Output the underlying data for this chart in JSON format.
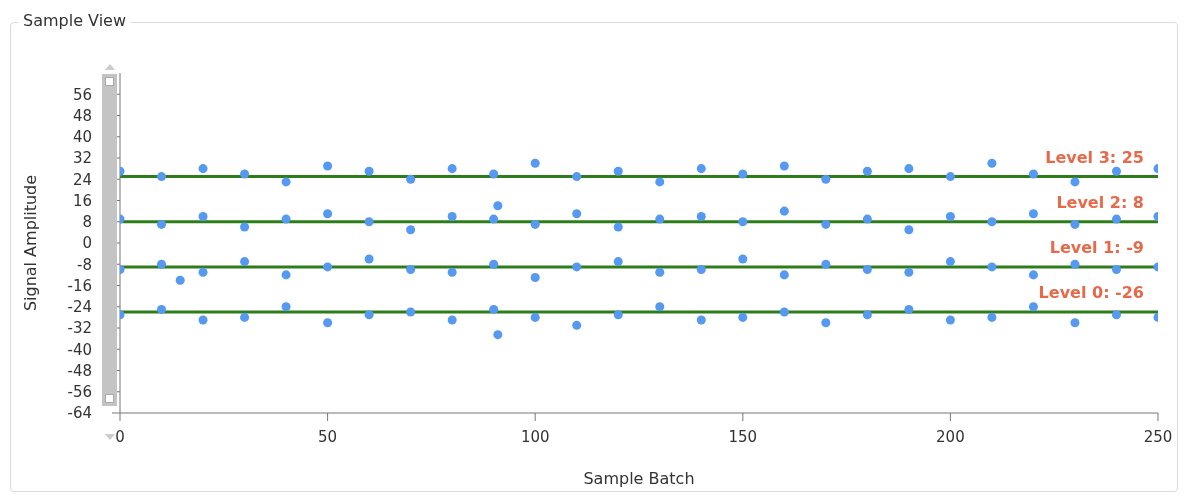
{
  "chart_data": {
    "type": "scatter",
    "title": "Sample View",
    "xlabel": "Sample Batch",
    "ylabel": "Signal Amplitude",
    "xlim": [
      0,
      250
    ],
    "xticks": [
      0,
      50,
      100,
      150,
      200,
      250
    ],
    "ylim": [
      -64,
      64
    ],
    "yticks": [
      -64,
      -56,
      -48,
      -40,
      -32,
      -24,
      -16,
      -8,
      0,
      8,
      16,
      24,
      32,
      40,
      48,
      56
    ],
    "grid": false,
    "marker": "circle",
    "series": [
      {
        "color": "#5599f0",
        "x": [
          0,
          10,
          20,
          30,
          40,
          50,
          60,
          70,
          80,
          90,
          100,
          110,
          120,
          130,
          140,
          150,
          160,
          170,
          180,
          190,
          200,
          210,
          220,
          230,
          240,
          250,
          0,
          10,
          20,
          30,
          40,
          50,
          60,
          70,
          80,
          90,
          100,
          110,
          120,
          130,
          140,
          150,
          160,
          170,
          180,
          190,
          200,
          210,
          220,
          230,
          240,
          250,
          0,
          10,
          20,
          30,
          40,
          50,
          60,
          70,
          80,
          90,
          100,
          110,
          120,
          130,
          140,
          150,
          160,
          170,
          180,
          190,
          200,
          210,
          220,
          230,
          240,
          250,
          0,
          10,
          20,
          30,
          40,
          50,
          60,
          70,
          80,
          90,
          100,
          110,
          120,
          130,
          140,
          150,
          160,
          170,
          180,
          190,
          200,
          210,
          220,
          230,
          240,
          250,
          91,
          14.5,
          91
        ],
        "values": [
          27,
          25,
          28,
          26,
          23,
          29,
          27,
          24,
          28,
          26,
          30,
          25,
          27,
          23,
          28,
          26,
          29,
          24,
          27,
          28,
          25,
          30,
          26,
          23,
          27,
          28,
          9,
          7,
          10,
          6,
          9,
          11,
          8,
          5,
          10,
          9,
          7,
          11,
          6,
          9,
          10,
          8,
          12,
          7,
          9,
          5,
          10,
          8,
          11,
          7,
          9,
          10,
          -10,
          -8,
          -11,
          -7,
          -12,
          -9,
          -6,
          -10,
          -11,
          -8,
          -13,
          -9,
          -7,
          -11,
          -10,
          -6,
          -12,
          -8,
          -10,
          -11,
          -7,
          -9,
          -12,
          -8,
          -10,
          -9,
          -27,
          -25,
          -29,
          -28,
          -24,
          -30,
          -27,
          -26,
          -29,
          -25,
          -28,
          -31,
          -27,
          -24,
          -29,
          -28,
          -26,
          -30,
          -27,
          -25,
          -29,
          -28,
          -24,
          -30,
          -27,
          -28,
          14,
          -14,
          -34.5
        ]
      }
    ],
    "ref_lines": [
      {
        "axis": "y",
        "value": 25,
        "label": "Level 3: 25",
        "color": "#2e7d1a"
      },
      {
        "axis": "y",
        "value": 8,
        "label": "Level 2: 8",
        "color": "#2e7d1a"
      },
      {
        "axis": "y",
        "value": -9,
        "label": "Level 1: -9",
        "color": "#2e7d1a"
      },
      {
        "axis": "y",
        "value": -26,
        "label": "Level 0: -26",
        "color": "#2e7d1a"
      }
    ]
  }
}
